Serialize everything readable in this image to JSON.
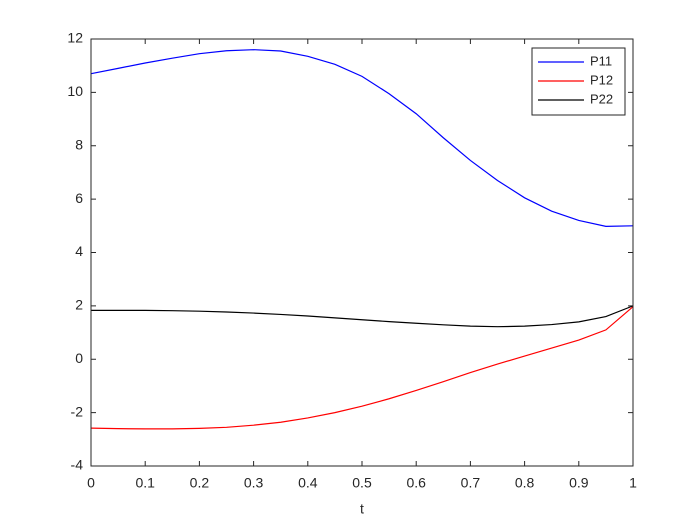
{
  "chart_data": {
    "type": "line",
    "xlabel": "t",
    "x": [
      0,
      0.05,
      0.1,
      0.15,
      0.2,
      0.25,
      0.3,
      0.35,
      0.4,
      0.45,
      0.5,
      0.55,
      0.6,
      0.65,
      0.7,
      0.75,
      0.8,
      0.85,
      0.9,
      0.95,
      1
    ],
    "series": [
      {
        "name": "P11",
        "color": "#0000ff",
        "values": [
          10.7,
          10.9,
          11.1,
          11.28,
          11.45,
          11.56,
          11.6,
          11.55,
          11.35,
          11.05,
          10.6,
          9.95,
          9.2,
          8.3,
          7.45,
          6.7,
          6.05,
          5.55,
          5.2,
          4.98,
          5.0
        ]
      },
      {
        "name": "P12",
        "color": "#ff0000",
        "values": [
          -2.58,
          -2.6,
          -2.61,
          -2.61,
          -2.59,
          -2.55,
          -2.47,
          -2.36,
          -2.2,
          -2.0,
          -1.76,
          -1.48,
          -1.17,
          -0.84,
          -0.5,
          -0.18,
          0.12,
          0.42,
          0.72,
          1.1,
          1.97
        ]
      },
      {
        "name": "P22",
        "color": "#000000",
        "values": [
          1.83,
          1.83,
          1.83,
          1.82,
          1.8,
          1.77,
          1.73,
          1.68,
          1.62,
          1.55,
          1.48,
          1.41,
          1.35,
          1.29,
          1.24,
          1.22,
          1.24,
          1.3,
          1.4,
          1.6,
          2.0
        ]
      }
    ],
    "xlim": [
      0,
      1
    ],
    "xticks": [
      0,
      0.1,
      0.2,
      0.3,
      0.4,
      0.5,
      0.6,
      0.7,
      0.8,
      0.9,
      1
    ],
    "ylim": [
      -4,
      12
    ],
    "yticks": [
      -4,
      -2,
      0,
      2,
      4,
      6,
      8,
      10,
      12
    ],
    "grid": false,
    "legend": "northeast"
  }
}
